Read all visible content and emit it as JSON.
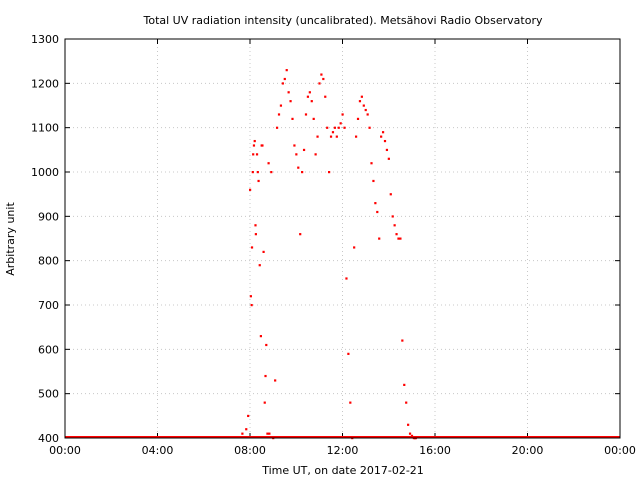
{
  "chart_data": {
    "type": "scatter",
    "title": "Total UV radiation intensity (uncalibrated). Metsähovi Radio Observatory",
    "xlabel": "Time UT, on date 2017-02-21",
    "ylabel": "Arbitrary unit",
    "xlim": [
      "00:00",
      "24:00"
    ],
    "ylim": [
      400,
      1300
    ],
    "xticks": [
      "00:00",
      "04:00",
      "08:00",
      "12:00",
      "16:00",
      "20:00",
      "00:00"
    ],
    "yticks": [
      400,
      500,
      600,
      700,
      800,
      900,
      1000,
      1100,
      1200,
      1300
    ],
    "grid": true,
    "legend": "none",
    "marker_color": "#ff0000",
    "baseline": {
      "value": 400,
      "from": "00:00",
      "to": "24:00"
    },
    "x": [
      "07:40",
      "07:50",
      "07:55",
      "08:00",
      "08:02",
      "08:04",
      "08:05",
      "08:07",
      "08:08",
      "08:10",
      "08:12",
      "08:14",
      "08:15",
      "08:18",
      "08:20",
      "08:22",
      "08:25",
      "08:28",
      "08:30",
      "08:32",
      "08:35",
      "08:38",
      "08:40",
      "08:42",
      "08:45",
      "08:48",
      "08:50",
      "08:55",
      "09:00",
      "09:05",
      "09:10",
      "09:15",
      "09:20",
      "09:25",
      "09:30",
      "09:35",
      "09:40",
      "09:45",
      "09:50",
      "09:55",
      "10:00",
      "10:05",
      "10:10",
      "10:15",
      "10:20",
      "10:25",
      "10:30",
      "10:35",
      "10:40",
      "10:45",
      "10:50",
      "10:55",
      "11:00",
      "11:05",
      "11:10",
      "11:15",
      "11:20",
      "11:25",
      "11:30",
      "11:35",
      "11:40",
      "11:45",
      "11:50",
      "11:55",
      "12:00",
      "12:05",
      "12:10",
      "12:15",
      "12:20",
      "12:25",
      "12:30",
      "12:35",
      "12:40",
      "12:45",
      "12:50",
      "12:55",
      "13:00",
      "13:05",
      "13:10",
      "13:15",
      "13:20",
      "13:25",
      "13:30",
      "13:35",
      "13:40",
      "13:45",
      "13:50",
      "13:55",
      "14:00",
      "14:05",
      "14:10",
      "14:15",
      "14:20",
      "14:25",
      "14:30",
      "14:35",
      "14:40",
      "14:45",
      "14:50",
      "14:55",
      "15:00",
      "15:05",
      "15:08",
      "15:10"
    ],
    "y": [
      410,
      420,
      450,
      960,
      720,
      700,
      830,
      1000,
      1040,
      1060,
      1070,
      880,
      860,
      1040,
      1000,
      980,
      790,
      630,
      1060,
      1060,
      820,
      480,
      540,
      610,
      410,
      1020,
      410,
      1000,
      400,
      530,
      1100,
      1130,
      1150,
      1200,
      1210,
      1230,
      1180,
      1160,
      1120,
      1060,
      1040,
      1010,
      860,
      1000,
      1050,
      1130,
      1170,
      1180,
      1160,
      1120,
      1040,
      1080,
      1200,
      1220,
      1210,
      1170,
      1100,
      1000,
      1080,
      1090,
      1100,
      1080,
      1100,
      1110,
      1130,
      1100,
      760,
      590,
      480,
      400,
      830,
      1080,
      1120,
      1160,
      1170,
      1150,
      1140,
      1130,
      1100,
      1020,
      980,
      930,
      910,
      850,
      1080,
      1090,
      1070,
      1050,
      1030,
      950,
      900,
      880,
      860,
      850,
      850,
      620,
      520,
      480,
      430,
      410,
      405,
      400,
      400,
      400
    ]
  }
}
